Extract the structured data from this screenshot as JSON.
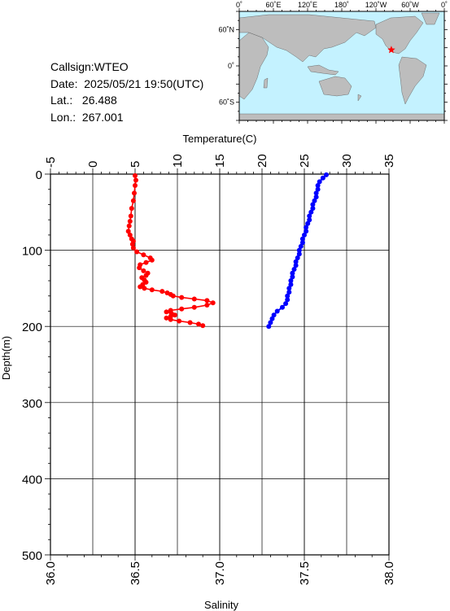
{
  "station": {
    "callsign_label": "Callsign:",
    "callsign": "WTEO",
    "date_label": "Date:",
    "date": "2025/05/21 19:50(UTC)",
    "lat_label": "Lat.:",
    "lat": "26.488",
    "lon_label": "Lon.:",
    "lon": "267.001"
  },
  "map": {
    "lon_labels": [
      "0˚",
      "60˚E",
      "120˚E",
      "180˚",
      "120˚W",
      "60˚W",
      "0˚"
    ],
    "lat_labels": [
      "60˚N",
      "0˚",
      "60˚S"
    ],
    "ocean_color": "#c4f2ff",
    "land_color": "#bdbdbd",
    "marker_color": "#ff0000",
    "marker": "star-icon"
  },
  "chart_data": {
    "type": "scatter",
    "y_axis": {
      "label": "Depth(m)",
      "range": [
        0,
        500
      ],
      "inverted": true,
      "ticks": [
        0,
        100,
        200,
        300,
        400,
        500
      ]
    },
    "x_axis_top": {
      "label": "Temperature(C)",
      "range": [
        -5,
        35
      ],
      "ticks": [
        -5,
        0,
        5,
        10,
        15,
        20,
        25,
        30,
        35
      ]
    },
    "x_axis_bottom": {
      "label": "Salinity",
      "range": [
        36.0,
        38.0
      ],
      "ticks": [
        "36.0",
        "36.5",
        "37.0",
        "37.5",
        "38.0"
      ]
    },
    "grid": true,
    "series": [
      {
        "axis": "temperature",
        "color": "#ff0000",
        "points": [
          [
            5.0,
            2
          ],
          [
            5.1,
            8
          ],
          [
            5.0,
            15
          ],
          [
            4.9,
            25
          ],
          [
            4.8,
            35
          ],
          [
            4.6,
            45
          ],
          [
            4.5,
            55
          ],
          [
            4.4,
            62
          ],
          [
            4.3,
            68
          ],
          [
            4.2,
            75
          ],
          [
            4.4,
            80
          ],
          [
            4.6,
            85
          ],
          [
            4.8,
            88
          ],
          [
            4.7,
            92
          ],
          [
            4.8,
            97
          ],
          [
            5.2,
            102
          ],
          [
            6.0,
            106
          ],
          [
            6.8,
            110
          ],
          [
            7.0,
            113
          ],
          [
            6.3,
            116
          ],
          [
            5.6,
            119
          ],
          [
            5.5,
            123
          ],
          [
            6.0,
            127
          ],
          [
            6.5,
            130
          ],
          [
            6.3,
            133
          ],
          [
            5.8,
            136
          ],
          [
            6.1,
            139
          ],
          [
            6.3,
            142
          ],
          [
            5.9,
            145
          ],
          [
            5.6,
            148
          ],
          [
            6.1,
            150
          ],
          [
            7.0,
            152
          ],
          [
            8.2,
            154
          ],
          [
            8.8,
            156
          ],
          [
            9.2,
            158
          ],
          [
            9.5,
            160
          ],
          [
            10.5,
            162
          ],
          [
            12.0,
            164
          ],
          [
            13.5,
            166
          ],
          [
            14.2,
            169
          ],
          [
            13.5,
            172
          ],
          [
            12.0,
            175
          ],
          [
            10.5,
            177
          ],
          [
            9.2,
            179
          ],
          [
            8.7,
            181
          ],
          [
            9.3,
            183
          ],
          [
            9.7,
            185
          ],
          [
            9.2,
            187
          ],
          [
            8.7,
            189
          ],
          [
            9.2,
            191
          ],
          [
            10.2,
            193
          ],
          [
            11.5,
            195
          ],
          [
            12.5,
            197
          ],
          [
            13.0,
            199
          ]
        ]
      },
      {
        "axis": "salinity",
        "color": "#0000ff",
        "points": [
          [
            37.63,
            1
          ],
          [
            37.61,
            5
          ],
          [
            37.59,
            10
          ],
          [
            37.58,
            15
          ],
          [
            37.58,
            20
          ],
          [
            37.57,
            25
          ],
          [
            37.57,
            30
          ],
          [
            37.56,
            35
          ],
          [
            37.55,
            40
          ],
          [
            37.55,
            45
          ],
          [
            37.54,
            50
          ],
          [
            37.53,
            55
          ],
          [
            37.53,
            60
          ],
          [
            37.52,
            65
          ],
          [
            37.51,
            70
          ],
          [
            37.51,
            75
          ],
          [
            37.5,
            80
          ],
          [
            37.49,
            85
          ],
          [
            37.49,
            90
          ],
          [
            37.48,
            95
          ],
          [
            37.47,
            100
          ],
          [
            37.47,
            105
          ],
          [
            37.46,
            110
          ],
          [
            37.45,
            115
          ],
          [
            37.45,
            120
          ],
          [
            37.44,
            125
          ],
          [
            37.43,
            130
          ],
          [
            37.43,
            135
          ],
          [
            37.42,
            140
          ],
          [
            37.42,
            145
          ],
          [
            37.41,
            150
          ],
          [
            37.41,
            155
          ],
          [
            37.4,
            160
          ],
          [
            37.4,
            165
          ],
          [
            37.39,
            170
          ],
          [
            37.37,
            175
          ],
          [
            37.34,
            180
          ],
          [
            37.32,
            185
          ],
          [
            37.31,
            190
          ],
          [
            37.3,
            195
          ],
          [
            37.29,
            200
          ]
        ]
      }
    ]
  }
}
